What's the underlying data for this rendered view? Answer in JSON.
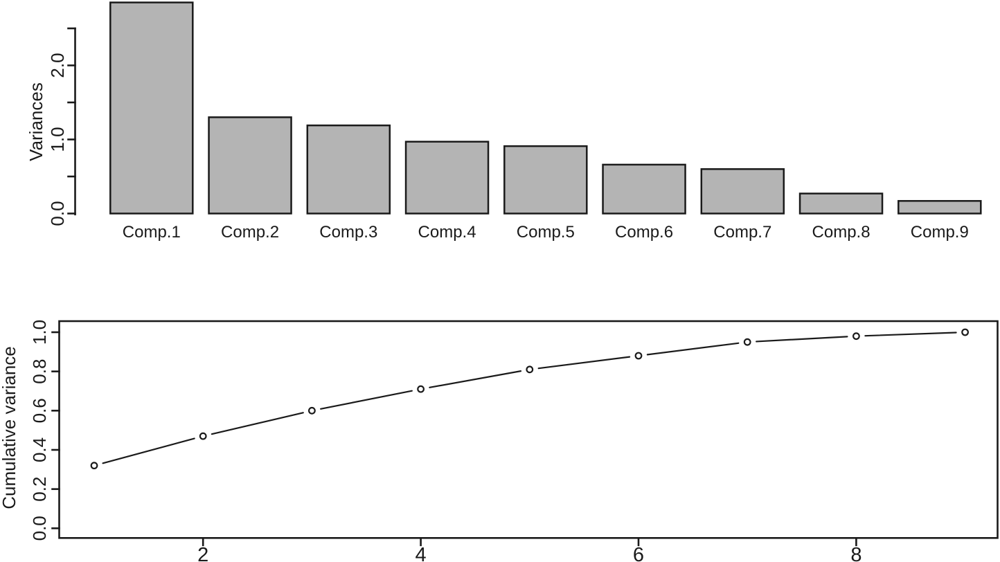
{
  "figure": {
    "background": "#ffffff",
    "ink": "#1a1a1a"
  },
  "chart_data": [
    {
      "type": "bar",
      "title": "",
      "ylabel": "Variances",
      "xlabel": "",
      "categories": [
        "Comp.1",
        "Comp.2",
        "Comp.3",
        "Comp.4",
        "Comp.5",
        "Comp.6",
        "Comp.7",
        "Comp.8",
        "Comp.9"
      ],
      "values": [
        2.85,
        1.3,
        1.19,
        0.97,
        0.91,
        0.66,
        0.6,
        0.27,
        0.17
      ],
      "ylim": [
        0,
        2.88
      ],
      "ytick_major": [
        {
          "v": 0,
          "label": "0.0"
        },
        {
          "v": 1,
          "label": "1.0"
        },
        {
          "v": 2,
          "label": "2.0"
        }
      ],
      "ytick_minor": [
        0.5,
        1.5,
        2.5
      ],
      "bar_fill": "#b4b4b4",
      "bar_stroke": "#1a1a1a",
      "grid": false,
      "legend": "none"
    },
    {
      "type": "line",
      "title": "",
      "ylabel": "Cumulative variance",
      "xlabel": "",
      "x": [
        1,
        2,
        3,
        4,
        5,
        6,
        7,
        8,
        9
      ],
      "y": [
        0.32,
        0.47,
        0.6,
        0.71,
        0.81,
        0.88,
        0.95,
        0.98,
        1.0
      ],
      "xlim": [
        0.68,
        9.32
      ],
      "ylim": [
        -0.04,
        1.04
      ],
      "xticks": [
        {
          "v": 2,
          "label": "2"
        },
        {
          "v": 4,
          "label": "4"
        },
        {
          "v": 6,
          "label": "6"
        },
        {
          "v": 8,
          "label": "8"
        }
      ],
      "yticks": [
        {
          "v": 0.0,
          "label": "0.0"
        },
        {
          "v": 0.2,
          "label": "0.2"
        },
        {
          "v": 0.4,
          "label": "0.4"
        },
        {
          "v": 0.6,
          "label": "0.6"
        },
        {
          "v": 0.8,
          "label": "0.8"
        },
        {
          "v": 1.0,
          "label": "1.0"
        }
      ],
      "marker": "open-circle",
      "line_color": "#1a1a1a",
      "grid": false,
      "legend": "none"
    }
  ]
}
